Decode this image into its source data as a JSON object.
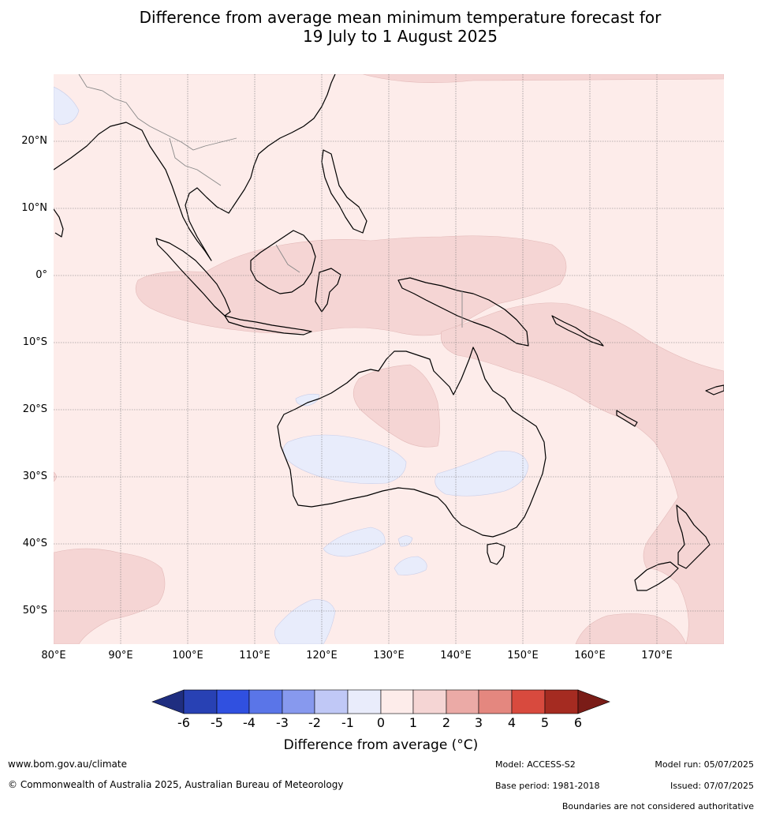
{
  "title": {
    "line1": "Difference from average mean minimum temperature forecast for",
    "line2": "19 July to 1 August 2025"
  },
  "map": {
    "lon_range": [
      80,
      180
    ],
    "lat_range": [
      -55,
      30
    ],
    "latitudes": [
      {
        "value": 20,
        "label": "20°N"
      },
      {
        "value": 10,
        "label": "10°N"
      },
      {
        "value": 0,
        "label": "0°"
      },
      {
        "value": -10,
        "label": "10°S"
      },
      {
        "value": -20,
        "label": "20°S"
      },
      {
        "value": -30,
        "label": "30°S"
      },
      {
        "value": -40,
        "label": "40°S"
      },
      {
        "value": -50,
        "label": "50°S"
      }
    ],
    "longitudes": [
      {
        "value": 80,
        "label": "80°E"
      },
      {
        "value": 90,
        "label": "90°E"
      },
      {
        "value": 100,
        "label": "100°E"
      },
      {
        "value": 110,
        "label": "110°E"
      },
      {
        "value": 120,
        "label": "120°E"
      },
      {
        "value": 130,
        "label": "130°E"
      },
      {
        "value": 140,
        "label": "140°E"
      },
      {
        "value": 150,
        "label": "150°E"
      },
      {
        "value": 160,
        "label": "160°E"
      },
      {
        "value": 170,
        "label": "170°E"
      }
    ],
    "background_anomaly_band": "0 to 1",
    "colors": {
      "band_0_1": "#fdecea",
      "band_1_2": "#f5d5d4",
      "band_-1_0": "#e8ecfb",
      "coastline": "#000000",
      "border": "#888888"
    }
  },
  "colorbar": {
    "ticks": [
      "-6",
      "-5",
      "-4",
      "-3",
      "-2",
      "-1",
      "0",
      "1",
      "2",
      "3",
      "4",
      "5",
      "6"
    ],
    "colors": [
      "#1f2e80",
      "#2841b4",
      "#3050e0",
      "#5a75e8",
      "#8799ee",
      "#c0c8f6",
      "#e9ecfb",
      "#fdecea",
      "#f5d5d4",
      "#ebaaa6",
      "#e4877f",
      "#d84a3e",
      "#a52b21",
      "#7a1c17"
    ],
    "label": "Difference from average ($^\\circ$C)",
    "label_display": "Difference from average (°C)"
  },
  "footer": {
    "website": "www.bom.gov.au/climate",
    "copyright": "© Commonwealth of Australia 2025, Australian Bureau of Meteorology",
    "model": "Model: ACCESS-S2",
    "model_run": "Model run: 05/07/2025",
    "base_period": "Base period: 1981-2018",
    "issued": "Issued: 07/07/2025",
    "boundaries_note": "Boundaries are not considered authoritative"
  }
}
